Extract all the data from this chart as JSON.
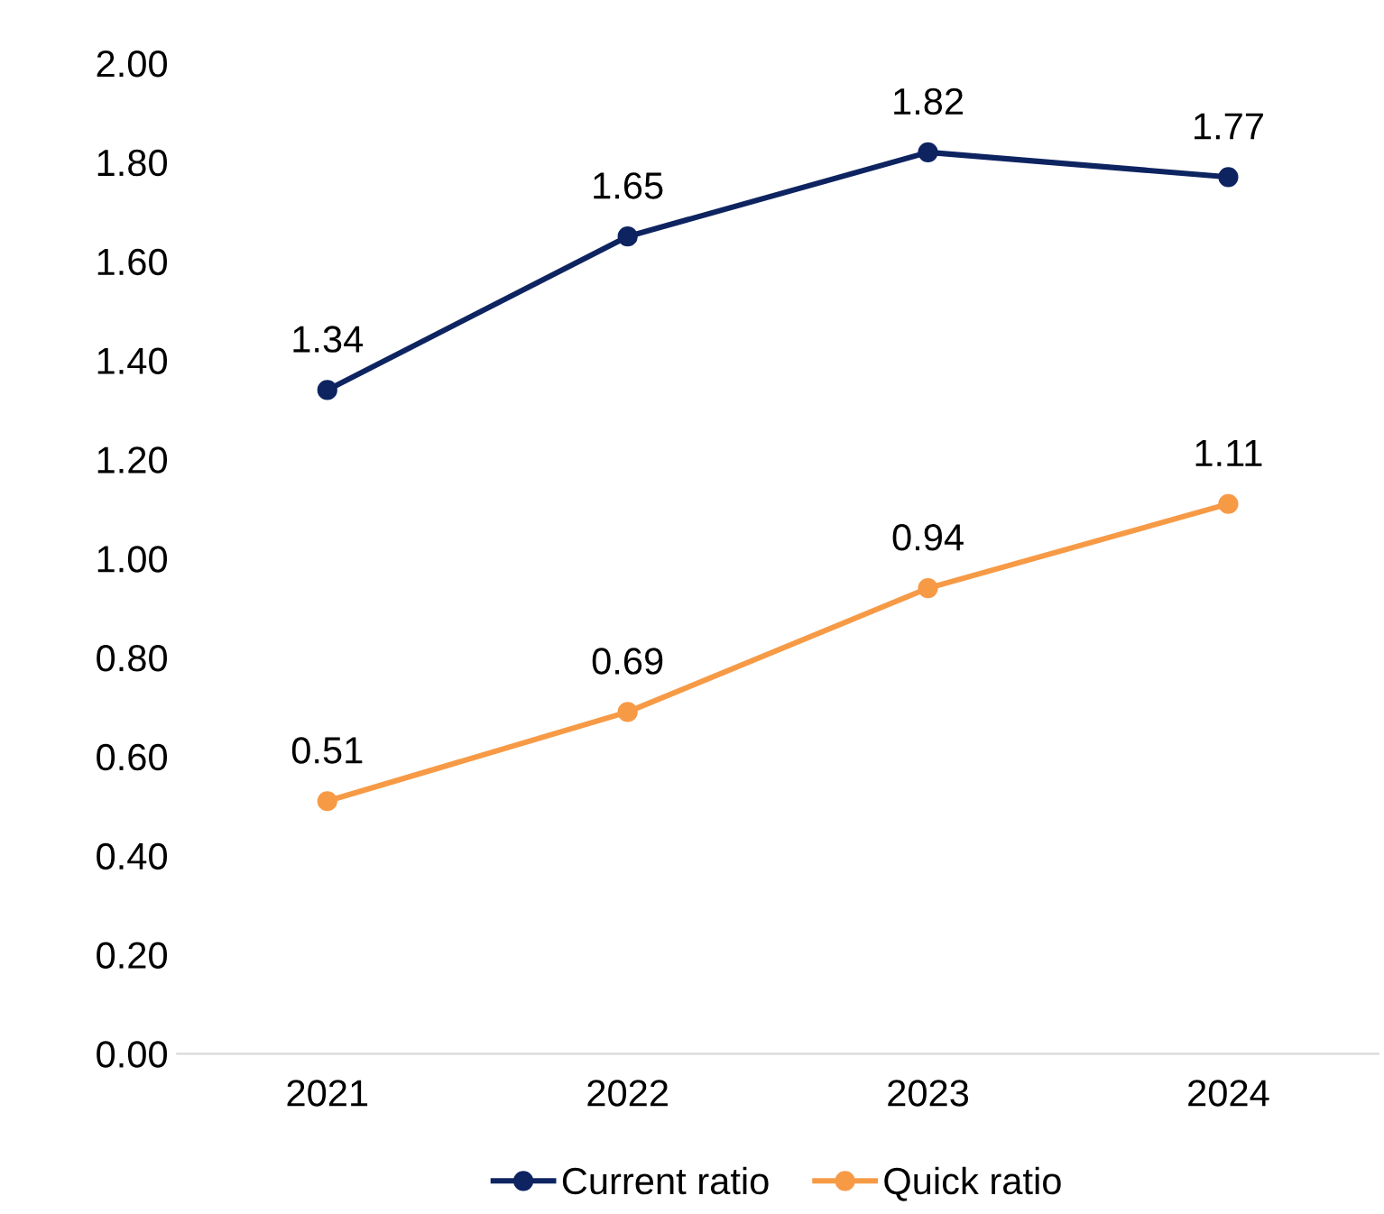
{
  "chart_data": {
    "type": "line",
    "categories": [
      "2021",
      "2022",
      "2023",
      "2024"
    ],
    "series": [
      {
        "name": "Current ratio",
        "color": "#0e2461",
        "values": [
          1.34,
          1.65,
          1.82,
          1.77
        ]
      },
      {
        "name": "Quick ratio",
        "color": "#f79a46",
        "values": [
          0.51,
          0.69,
          0.94,
          1.11
        ]
      }
    ],
    "ylim": [
      0,
      2
    ],
    "yticks": [
      {
        "value": 0,
        "label": "0.00"
      },
      {
        "value": 0.2,
        "label": "0.20"
      },
      {
        "value": 0.4,
        "label": "0.40"
      },
      {
        "value": 0.6,
        "label": "0.60"
      },
      {
        "value": 0.8,
        "label": "0.80"
      },
      {
        "value": 1,
        "label": "1.00"
      },
      {
        "value": 1.2,
        "label": "1.20"
      },
      {
        "value": 1.4,
        "label": "1.40"
      },
      {
        "value": 1.6,
        "label": "1.60"
      },
      {
        "value": 1.8,
        "label": "1.80"
      },
      {
        "value": 2,
        "label": "2.00"
      }
    ],
    "data_labels": true,
    "marker": "circle",
    "line_style": "solid",
    "grid": false,
    "legend": "bottom"
  }
}
